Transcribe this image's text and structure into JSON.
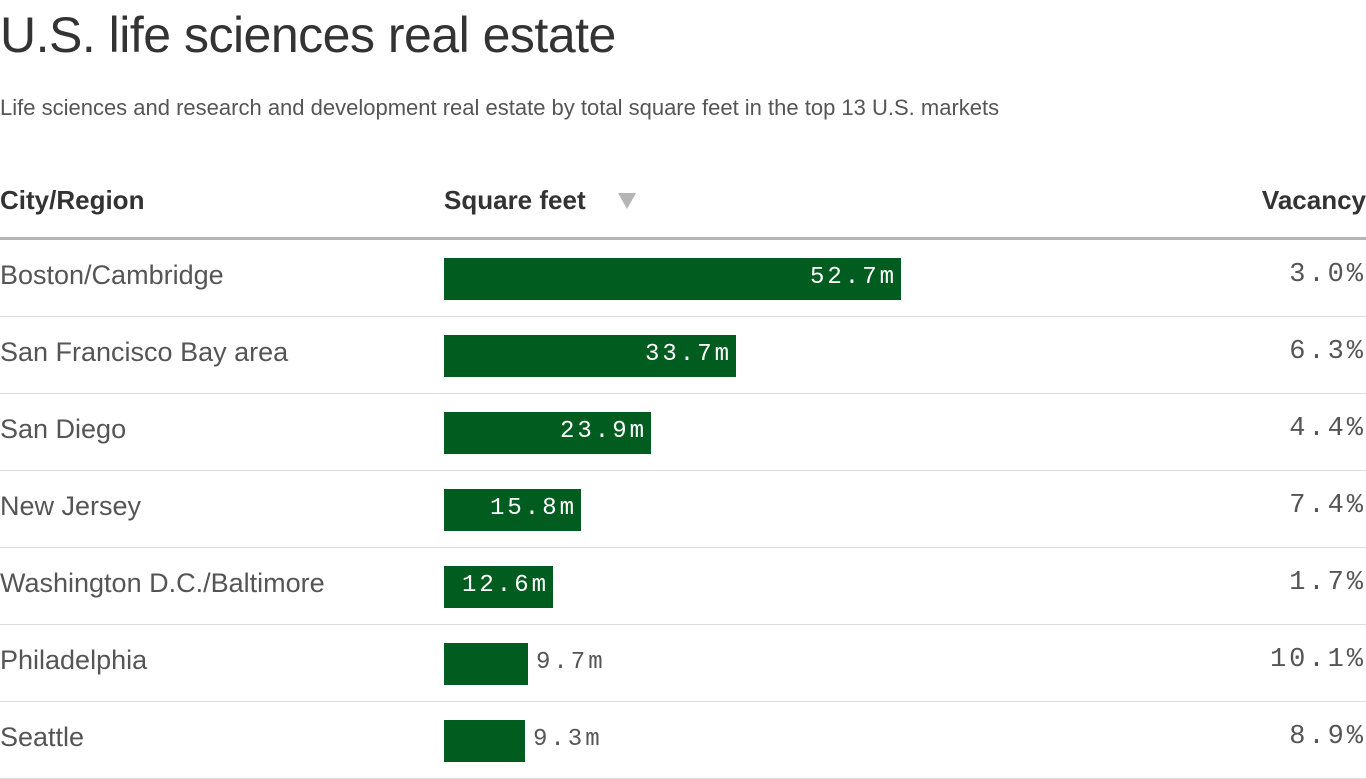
{
  "title": "U.S. life sciences real estate",
  "subtitle": "Life sciences and research and development real estate by total square feet in the top 13 U.S. markets",
  "chart_data": {
    "type": "table",
    "columns": [
      "City/Region",
      "Square feet",
      "Vacancy"
    ],
    "sort": {
      "column": "Square feet",
      "direction": "descending",
      "icon": "sort-down-triangle-icon"
    },
    "bar_color": "#005c1f",
    "rows": [
      {
        "city": "Boston/Cambridge",
        "sqft": 52.7,
        "sqft_label": "52.7m",
        "vacancy": "3.0%"
      },
      {
        "city": "San Francisco Bay area",
        "sqft": 33.7,
        "sqft_label": "33.7m",
        "vacancy": "6.3%"
      },
      {
        "city": "San Diego",
        "sqft": 23.9,
        "sqft_label": "23.9m",
        "vacancy": "4.4%"
      },
      {
        "city": "New Jersey",
        "sqft": 15.8,
        "sqft_label": "15.8m",
        "vacancy": "7.4%"
      },
      {
        "city": "Washington D.C./Baltimore",
        "sqft": 12.6,
        "sqft_label": "12.6m",
        "vacancy": "1.7%"
      },
      {
        "city": "Philadelphia",
        "sqft": 9.7,
        "sqft_label": "9.7m",
        "vacancy": "10.1%"
      },
      {
        "city": "Seattle",
        "sqft": 9.3,
        "sqft_label": "9.3m",
        "vacancy": "8.9%"
      }
    ]
  }
}
